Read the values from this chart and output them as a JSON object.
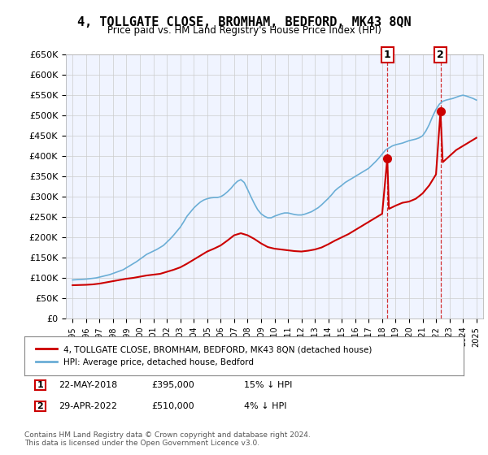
{
  "title": "4, TOLLGATE CLOSE, BROMHAM, BEDFORD, MK43 8QN",
  "subtitle": "Price paid vs. HM Land Registry's House Price Index (HPI)",
  "ylabel": "",
  "legend_line1": "4, TOLLGATE CLOSE, BROMHAM, BEDFORD, MK43 8QN (detached house)",
  "legend_line2": "HPI: Average price, detached house, Bedford",
  "point1_label": "1",
  "point1_date": "22-MAY-2018",
  "point1_price": "£395,000",
  "point1_hpi": "15% ↓ HPI",
  "point2_label": "2",
  "point2_date": "29-APR-2022",
  "point2_price": "£510,000",
  "point2_hpi": "4% ↓ HPI",
  "footer": "Contains HM Land Registry data © Crown copyright and database right 2024.\nThis data is licensed under the Open Government Licence v3.0.",
  "hpi_color": "#6baed6",
  "price_color": "#cc0000",
  "point_color": "#cc0000",
  "vline_color": "#cc0000",
  "grid_color": "#cccccc",
  "bg_color": "#ffffff",
  "plot_bg_color": "#f0f4ff",
  "ylim": [
    0,
    650000
  ],
  "yticks": [
    0,
    50000,
    100000,
    150000,
    200000,
    250000,
    300000,
    350000,
    400000,
    450000,
    500000,
    550000,
    600000,
    650000
  ],
  "ytick_labels": [
    "£0",
    "£50K",
    "£100K",
    "£150K",
    "£200K",
    "£250K",
    "£300K",
    "£350K",
    "£400K",
    "£450K",
    "£500K",
    "£550K",
    "£600K",
    "£650K"
  ],
  "xtick_years": [
    1995,
    1996,
    1997,
    1998,
    1999,
    2000,
    2001,
    2002,
    2003,
    2004,
    2005,
    2006,
    2007,
    2008,
    2009,
    2010,
    2011,
    2012,
    2013,
    2014,
    2015,
    2016,
    2017,
    2018,
    2019,
    2020,
    2021,
    2022,
    2023,
    2024,
    2025
  ],
  "point1_x": 2018.38,
  "point1_y": 395000,
  "point2_x": 2022.33,
  "point2_y": 510000,
  "hpi_years": [
    1995,
    1995.25,
    1995.5,
    1995.75,
    1996,
    1996.25,
    1996.5,
    1996.75,
    1997,
    1997.25,
    1997.5,
    1997.75,
    1998,
    1998.25,
    1998.5,
    1998.75,
    1999,
    1999.25,
    1999.5,
    1999.75,
    2000,
    2000.25,
    2000.5,
    2000.75,
    2001,
    2001.25,
    2001.5,
    2001.75,
    2002,
    2002.25,
    2002.5,
    2002.75,
    2003,
    2003.25,
    2003.5,
    2003.75,
    2004,
    2004.25,
    2004.5,
    2004.75,
    2005,
    2005.25,
    2005.5,
    2005.75,
    2006,
    2006.25,
    2006.5,
    2006.75,
    2007,
    2007.25,
    2007.5,
    2007.75,
    2008,
    2008.25,
    2008.5,
    2008.75,
    2009,
    2009.25,
    2009.5,
    2009.75,
    2010,
    2010.25,
    2010.5,
    2010.75,
    2011,
    2011.25,
    2011.5,
    2011.75,
    2012,
    2012.25,
    2012.5,
    2012.75,
    2013,
    2013.25,
    2013.5,
    2013.75,
    2014,
    2014.25,
    2014.5,
    2014.75,
    2015,
    2015.25,
    2015.5,
    2015.75,
    2016,
    2016.25,
    2016.5,
    2016.75,
    2017,
    2017.25,
    2017.5,
    2017.75,
    2018,
    2018.25,
    2018.5,
    2018.75,
    2019,
    2019.25,
    2019.5,
    2019.75,
    2020,
    2020.25,
    2020.5,
    2020.75,
    2021,
    2021.25,
    2021.5,
    2021.75,
    2022,
    2022.25,
    2022.5,
    2022.75,
    2023,
    2023.25,
    2023.5,
    2023.75,
    2024,
    2024.25,
    2024.5,
    2024.75,
    2025
  ],
  "hpi_values": [
    95000,
    95500,
    96000,
    96500,
    97000,
    98000,
    99000,
    100000,
    102000,
    104000,
    106000,
    108000,
    111000,
    114000,
    117000,
    120000,
    125000,
    130000,
    135000,
    140000,
    146000,
    152000,
    158000,
    162000,
    166000,
    170000,
    175000,
    180000,
    188000,
    196000,
    205000,
    215000,
    225000,
    238000,
    252000,
    262000,
    272000,
    280000,
    287000,
    292000,
    295000,
    297000,
    298000,
    298000,
    300000,
    305000,
    312000,
    320000,
    330000,
    338000,
    342000,
    335000,
    318000,
    300000,
    283000,
    268000,
    258000,
    252000,
    248000,
    248000,
    252000,
    255000,
    258000,
    260000,
    260000,
    258000,
    256000,
    255000,
    255000,
    257000,
    260000,
    263000,
    268000,
    273000,
    280000,
    288000,
    296000,
    305000,
    315000,
    322000,
    328000,
    335000,
    340000,
    345000,
    350000,
    355000,
    360000,
    365000,
    370000,
    378000,
    386000,
    395000,
    405000,
    415000,
    420000,
    425000,
    428000,
    430000,
    432000,
    435000,
    438000,
    440000,
    442000,
    445000,
    450000,
    462000,
    478000,
    498000,
    515000,
    528000,
    535000,
    538000,
    540000,
    542000,
    545000,
    548000,
    550000,
    548000,
    545000,
    542000,
    538000
  ],
  "price_years": [
    1995,
    1995.5,
    1996,
    1996.5,
    1997,
    1997.5,
    1998,
    1998.5,
    1999,
    1999.5,
    2000,
    2000.5,
    2001,
    2001.5,
    2002,
    2002.5,
    2003,
    2003.5,
    2004,
    2004.5,
    2005,
    2005.5,
    2006,
    2006.5,
    2007,
    2007.5,
    2008,
    2008.5,
    2009,
    2009.5,
    2010,
    2010.5,
    2011,
    2011.5,
    2012,
    2012.5,
    2013,
    2013.5,
    2014,
    2014.5,
    2015,
    2015.5,
    2016,
    2016.5,
    2017,
    2017.5,
    2018,
    2018.38,
    2018.5,
    2019,
    2019.5,
    2020,
    2020.5,
    2021,
    2021.5,
    2022,
    2022.33,
    2022.5,
    2023,
    2023.5,
    2024,
    2024.5,
    2025
  ],
  "price_values": [
    82000,
    82500,
    83000,
    84000,
    86000,
    89000,
    92000,
    95000,
    98000,
    100000,
    103000,
    106000,
    108000,
    110000,
    115000,
    120000,
    126000,
    135000,
    145000,
    155000,
    165000,
    172000,
    180000,
    192000,
    205000,
    210000,
    205000,
    196000,
    185000,
    176000,
    172000,
    170000,
    168000,
    166000,
    165000,
    167000,
    170000,
    175000,
    183000,
    192000,
    200000,
    208000,
    218000,
    228000,
    238000,
    248000,
    258000,
    395000,
    270000,
    278000,
    285000,
    288000,
    295000,
    308000,
    328000,
    355000,
    510000,
    385000,
    400000,
    415000,
    425000,
    435000,
    445000
  ]
}
